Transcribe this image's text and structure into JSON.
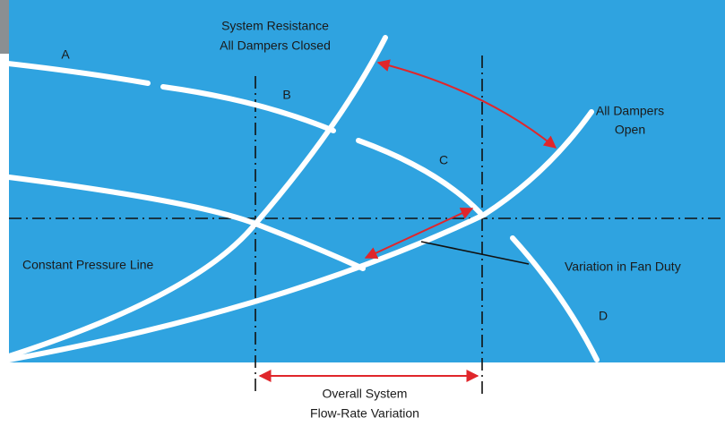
{
  "labels": {
    "system_resistance": "System Resistance",
    "dampers_closed": "All Dampers Closed",
    "a": "A",
    "b": "B",
    "c": "C",
    "d": "D",
    "dampers_open_1": "All Dampers",
    "dampers_open_2": "Open",
    "constant_pressure": "Constant Pressure Line",
    "fan_duty": "Variation in Fan Duty",
    "flow_1": "Overall System",
    "flow_2": "Flow-Rate Variation"
  }
}
